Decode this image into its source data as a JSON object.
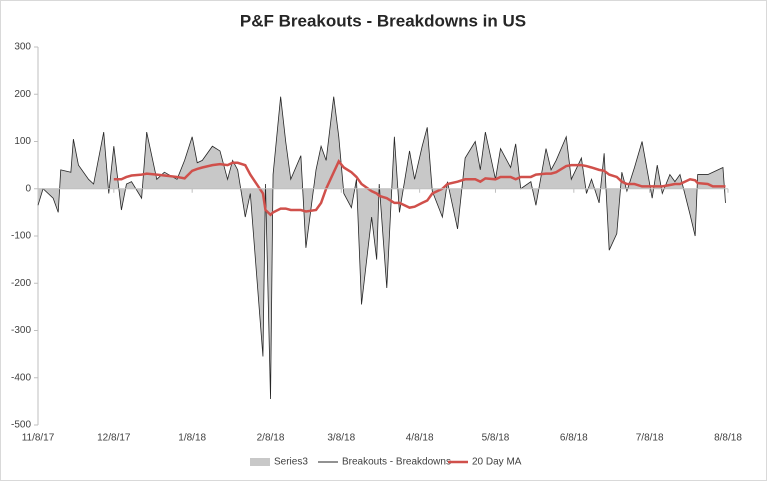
{
  "chart_data": {
    "type": "line",
    "title": "P&F Breakouts - Breakdowns in US",
    "x": [
      "11/8/17",
      "11/10/17",
      "11/14/17",
      "11/16/17",
      "11/17/17",
      "11/21/17",
      "11/22/17",
      "11/24/17",
      "11/28/17",
      "11/30/17",
      "12/4/17",
      "12/6/17",
      "12/8/17",
      "12/11/17",
      "12/13/17",
      "12/15/17",
      "12/19/17",
      "12/21/17",
      "12/25/17",
      "12/28/17",
      "1/2/18",
      "1/5/18",
      "1/8/18",
      "1/10/18",
      "1/12/18",
      "1/16/18",
      "1/19/18",
      "1/22/18",
      "1/24/18",
      "1/26/18",
      "1/29/18",
      "1/31/18",
      "2/5/18",
      "2/6/18",
      "2/8/18",
      "2/9/18",
      "2/12/18",
      "2/14/18",
      "2/16/18",
      "2/20/18",
      "2/22/18",
      "2/26/18",
      "2/28/18",
      "3/2/18",
      "3/5/18",
      "3/7/18",
      "3/9/18",
      "3/12/18",
      "3/14/18",
      "3/16/18",
      "3/20/18",
      "3/22/18",
      "3/23/18",
      "3/26/18",
      "3/29/18",
      "3/31/18",
      "4/4/18",
      "4/6/18",
      "4/9/18",
      "4/11/18",
      "4/13/18",
      "4/17/18",
      "4/19/18",
      "4/23/18",
      "4/26/18",
      "4/30/18",
      "5/2/18",
      "5/4/18",
      "5/8/18",
      "5/10/18",
      "5/14/18",
      "5/16/18",
      "5/18/18",
      "5/22/18",
      "5/24/18",
      "5/28/18",
      "5/30/18",
      "6/1/18",
      "6/5/18",
      "6/7/18",
      "6/11/18",
      "6/13/18",
      "6/15/18",
      "6/18/18",
      "6/20/18",
      "6/22/18",
      "6/25/18",
      "6/27/18",
      "6/29/18",
      "7/2/18",
      "7/5/18",
      "7/9/18",
      "7/11/18",
      "7/13/18",
      "7/16/18",
      "7/18/18",
      "7/20/18",
      "7/24/18",
      "7/26/18",
      "7/27/18",
      "7/31/18",
      "8/2/18",
      "8/6/18",
      "8/7/18"
    ],
    "series": [
      {
        "name": "Series3",
        "kind": "area",
        "color": "#c8c8c8",
        "values": [
          -35,
          0,
          -20,
          -50,
          40,
          35,
          105,
          50,
          20,
          10,
          120,
          -10,
          90,
          -45,
          10,
          15,
          -20,
          120,
          20,
          35,
          20,
          60,
          110,
          55,
          60,
          90,
          80,
          20,
          60,
          40,
          -60,
          -10,
          -355,
          10,
          -445,
          30,
          195,
          100,
          20,
          70,
          -125,
          40,
          90,
          60,
          195,
          110,
          -10,
          -40,
          20,
          -245,
          -60,
          -150,
          10,
          -210,
          110,
          -50,
          80,
          20,
          90,
          130,
          -5,
          -60,
          15,
          -85,
          65,
          100,
          40,
          120,
          20,
          85,
          45,
          95,
          0,
          15,
          -35,
          85,
          40,
          60,
          110,
          20,
          65,
          -10,
          20,
          -30,
          75,
          -130,
          -95,
          35,
          -5,
          45,
          100,
          -20,
          50,
          -10,
          30,
          15,
          30,
          -55,
          -100,
          30,
          30,
          35,
          45,
          -30
        ]
      },
      {
        "name": "Breakouts - Breakdowns",
        "kind": "line",
        "color": "#262626",
        "values": [
          -35,
          0,
          -20,
          -50,
          40,
          35,
          105,
          50,
          20,
          10,
          120,
          -10,
          90,
          -45,
          10,
          15,
          -20,
          120,
          20,
          35,
          20,
          60,
          110,
          55,
          60,
          90,
          80,
          20,
          60,
          40,
          -60,
          -10,
          -355,
          10,
          -445,
          30,
          195,
          100,
          20,
          70,
          -125,
          40,
          90,
          60,
          195,
          110,
          -10,
          -40,
          20,
          -245,
          -60,
          -150,
          10,
          -210,
          110,
          -50,
          80,
          20,
          90,
          130,
          -5,
          -60,
          15,
          -85,
          65,
          100,
          40,
          120,
          20,
          85,
          45,
          95,
          0,
          15,
          -35,
          85,
          40,
          60,
          110,
          20,
          65,
          -10,
          20,
          -30,
          75,
          -130,
          -95,
          35,
          -5,
          45,
          100,
          -20,
          50,
          -10,
          30,
          15,
          30,
          -55,
          -100,
          30,
          30,
          35,
          45,
          -30
        ]
      },
      {
        "name": "20 Day MA",
        "kind": "line",
        "color": "#d0504b",
        "values": [
          null,
          null,
          null,
          null,
          null,
          null,
          null,
          null,
          null,
          null,
          null,
          null,
          20,
          20,
          25,
          28,
          30,
          32,
          30,
          28,
          25,
          22,
          38,
          42,
          45,
          50,
          52,
          50,
          55,
          55,
          50,
          30,
          -10,
          -45,
          -55,
          -50,
          -42,
          -42,
          -45,
          -45,
          -48,
          -45,
          -30,
          0,
          35,
          58,
          45,
          35,
          25,
          10,
          -5,
          -10,
          -15,
          -20,
          -30,
          -30,
          -40,
          -38,
          -30,
          -25,
          -10,
          0,
          10,
          15,
          20,
          20,
          15,
          22,
          20,
          25,
          25,
          20,
          25,
          25,
          30,
          32,
          32,
          35,
          48,
          50,
          50,
          48,
          45,
          40,
          38,
          30,
          25,
          15,
          10,
          10,
          5,
          5,
          5,
          5,
          8,
          10,
          10,
          20,
          18,
          12,
          10,
          5,
          5,
          5
        ]
      }
    ],
    "xlim": [
      "11/8/17",
      "8/8/18"
    ],
    "xticks": [
      "11/8/17",
      "12/8/17",
      "1/8/18",
      "2/8/18",
      "3/8/18",
      "4/8/18",
      "5/8/18",
      "6/8/18",
      "7/8/18",
      "8/8/18"
    ],
    "ylim": [
      -500,
      300
    ],
    "yticks": [
      -500,
      -400,
      -300,
      -200,
      -100,
      0,
      100,
      200,
      300
    ],
    "grid": false,
    "legend": "bottom"
  }
}
